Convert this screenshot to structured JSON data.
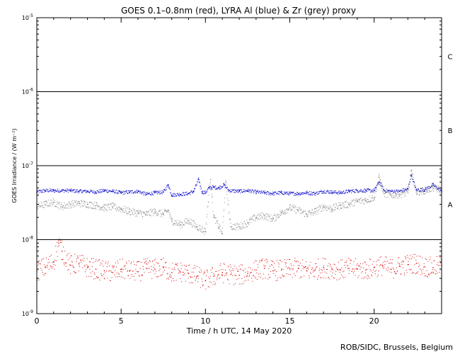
{
  "chart_data": {
    "type": "scatter",
    "title": "GOES 0.1–0.8nm (red), LYRA Al (blue) & Zr (grey) proxy",
    "xlabel": "Time / h UTC, 14 May 2020",
    "ylabel": "GOES Irradiance / (W m⁻²)",
    "credit": "ROB/SIDC, Brussels, Belgium",
    "xlim": [
      0,
      24
    ],
    "ylim": [
      1e-09,
      1e-05
    ],
    "y_scale": "log",
    "x_ticks": [
      0,
      5,
      10,
      15,
      20
    ],
    "x_tick_labels": [
      "0",
      "5",
      "10",
      "15",
      "20"
    ],
    "y_ticks": [
      1e-09,
      1e-08,
      1e-07,
      1e-06,
      1e-05
    ],
    "y_tick_labels": [
      {
        "base": "10",
        "exp": "-9"
      },
      {
        "base": "10",
        "exp": "-8"
      },
      {
        "base": "10",
        "exp": "-7"
      },
      {
        "base": "10",
        "exp": "-6"
      },
      {
        "base": "10",
        "exp": "-5"
      }
    ],
    "flare_class_levels": [
      1e-08,
      1e-07,
      1e-06
    ],
    "flare_class_labels": [
      {
        "label": "A",
        "y": 3e-08
      },
      {
        "label": "B",
        "y": 3e-07
      },
      {
        "label": "C",
        "y": 3e-06
      }
    ],
    "grid": false,
    "series": [
      {
        "color": "#0000cc",
        "x": [
          0.0,
          0.5,
          1.0,
          1.5,
          2.0,
          2.5,
          3.0,
          3.5,
          4.0,
          4.5,
          5.0,
          5.5,
          6.0,
          6.5,
          7.0,
          7.5,
          7.8,
          8.0,
          8.5,
          9.0,
          9.3,
          9.6,
          9.8,
          10.0,
          10.2,
          10.5,
          10.8,
          11.1,
          11.4,
          12.0,
          12.5,
          13.0,
          13.5,
          14.0,
          14.5,
          15.0,
          15.5,
          16.0,
          16.5,
          17.0,
          17.5,
          18.0,
          18.5,
          19.0,
          19.5,
          20.0,
          20.3,
          20.6,
          21.0,
          21.5,
          22.0,
          22.2,
          22.5,
          23.0,
          23.5,
          24.0
        ],
        "y": [
          4.4e-08,
          4.6e-08,
          4.6e-08,
          4.6e-08,
          4.6e-08,
          4.5e-08,
          4.5e-08,
          4.4e-08,
          4.6e-08,
          4.5e-08,
          4.3e-08,
          4.4e-08,
          4.5e-08,
          4.1e-08,
          4.3e-08,
          4.4e-08,
          5.5e-08,
          4e-08,
          4.1e-08,
          4.2e-08,
          4.5e-08,
          6.5e-08,
          4.4e-08,
          4.3e-08,
          5e-08,
          5.1e-08,
          5e-08,
          5.5e-08,
          4.6e-08,
          4.5e-08,
          4.6e-08,
          4.4e-08,
          4.3e-08,
          4.2e-08,
          4.3e-08,
          4.2e-08,
          4.2e-08,
          4.3e-08,
          4.2e-08,
          4.5e-08,
          4.4e-08,
          4.3e-08,
          4.5e-08,
          4.6e-08,
          4.6e-08,
          4.6e-08,
          6e-08,
          4.6e-08,
          4.5e-08,
          4.5e-08,
          4.8e-08,
          7.5e-08,
          4.7e-08,
          4.7e-08,
          5.5e-08,
          4.5e-08
        ]
      },
      {
        "color": "#888888",
        "x": [
          0.0,
          0.5,
          1.0,
          1.5,
          2.0,
          2.5,
          3.0,
          3.5,
          4.0,
          4.5,
          5.0,
          5.5,
          6.0,
          6.5,
          7.0,
          7.5,
          7.8,
          8.0,
          8.5,
          9.0,
          9.5,
          10.0,
          10.3,
          10.5,
          10.8,
          11.0,
          11.2,
          11.5,
          12.0,
          12.5,
          13.0,
          13.5,
          14.0,
          14.5,
          15.0,
          15.5,
          16.0,
          16.5,
          17.0,
          17.5,
          18.0,
          18.5,
          19.0,
          19.5,
          20.0,
          20.3,
          20.6,
          21.0,
          21.5,
          22.0,
          22.2,
          22.5,
          23.0,
          23.5,
          24.0
        ],
        "y": [
          2.8e-08,
          3e-08,
          3.2e-08,
          2.8e-08,
          3e-08,
          3.1e-08,
          3e-08,
          2.9e-08,
          2.7e-08,
          2.8e-08,
          2.6e-08,
          2.4e-08,
          2.3e-08,
          2.2e-08,
          2.4e-08,
          2.2e-08,
          2.5e-08,
          1.8e-08,
          1.6e-08,
          1.8e-08,
          1.5e-08,
          1.3e-08,
          6.5e-08,
          2e-08,
          1.5e-08,
          1.2e-08,
          6e-08,
          1.5e-08,
          1.5e-08,
          1.7e-08,
          2e-08,
          2.1e-08,
          1.9e-08,
          2.3e-08,
          2.7e-08,
          2.5e-08,
          2.2e-08,
          2.4e-08,
          2.8e-08,
          2.6e-08,
          2.9e-08,
          3e-08,
          3.3e-08,
          3.4e-08,
          3.7e-08,
          7e-08,
          4.2e-08,
          4e-08,
          4.1e-08,
          4.3e-08,
          8.5e-08,
          4.4e-08,
          4.6e-08,
          5e-08,
          4.7e-08
        ]
      },
      {
        "color": "#dd0000",
        "x": [
          0.0,
          0.5,
          1.0,
          1.3,
          1.5,
          2.0,
          2.5,
          3.0,
          3.5,
          4.0,
          4.5,
          5.0,
          5.5,
          6.0,
          6.5,
          7.0,
          7.5,
          8.0,
          8.5,
          9.0,
          9.5,
          10.0,
          10.5,
          11.0,
          11.5,
          12.0,
          12.5,
          13.0,
          13.5,
          14.0,
          14.5,
          15.0,
          15.5,
          16.0,
          16.5,
          17.0,
          17.5,
          18.0,
          18.5,
          19.0,
          19.5,
          20.0,
          20.5,
          21.0,
          21.5,
          22.0,
          22.5,
          23.0,
          23.5,
          24.0
        ],
        "y": [
          3.8e-09,
          4.2e-09,
          5e-09,
          9e-09,
          7e-09,
          4.5e-09,
          4.8e-09,
          4.2e-09,
          4e-09,
          3.8e-09,
          3.6e-09,
          4e-09,
          3.8e-09,
          3.7e-09,
          4.1e-09,
          4e-09,
          4.2e-09,
          3.6e-09,
          3.7e-09,
          3.5e-09,
          3.2e-09,
          2.8e-09,
          3.2e-09,
          3.6e-09,
          3.4e-09,
          3.3e-09,
          3.5e-09,
          3.9e-09,
          4.1e-09,
          3.8e-09,
          3.9e-09,
          4e-09,
          4.1e-09,
          3.8e-09,
          3.9e-09,
          4.2e-09,
          4e-09,
          3.9e-09,
          4.1e-09,
          4e-09,
          3.9e-09,
          4.2e-09,
          4.5e-09,
          4e-09,
          4.4e-09,
          4.6e-09,
          4.8e-09,
          4.3e-09,
          4.2e-09,
          4.5e-09
        ]
      }
    ]
  }
}
